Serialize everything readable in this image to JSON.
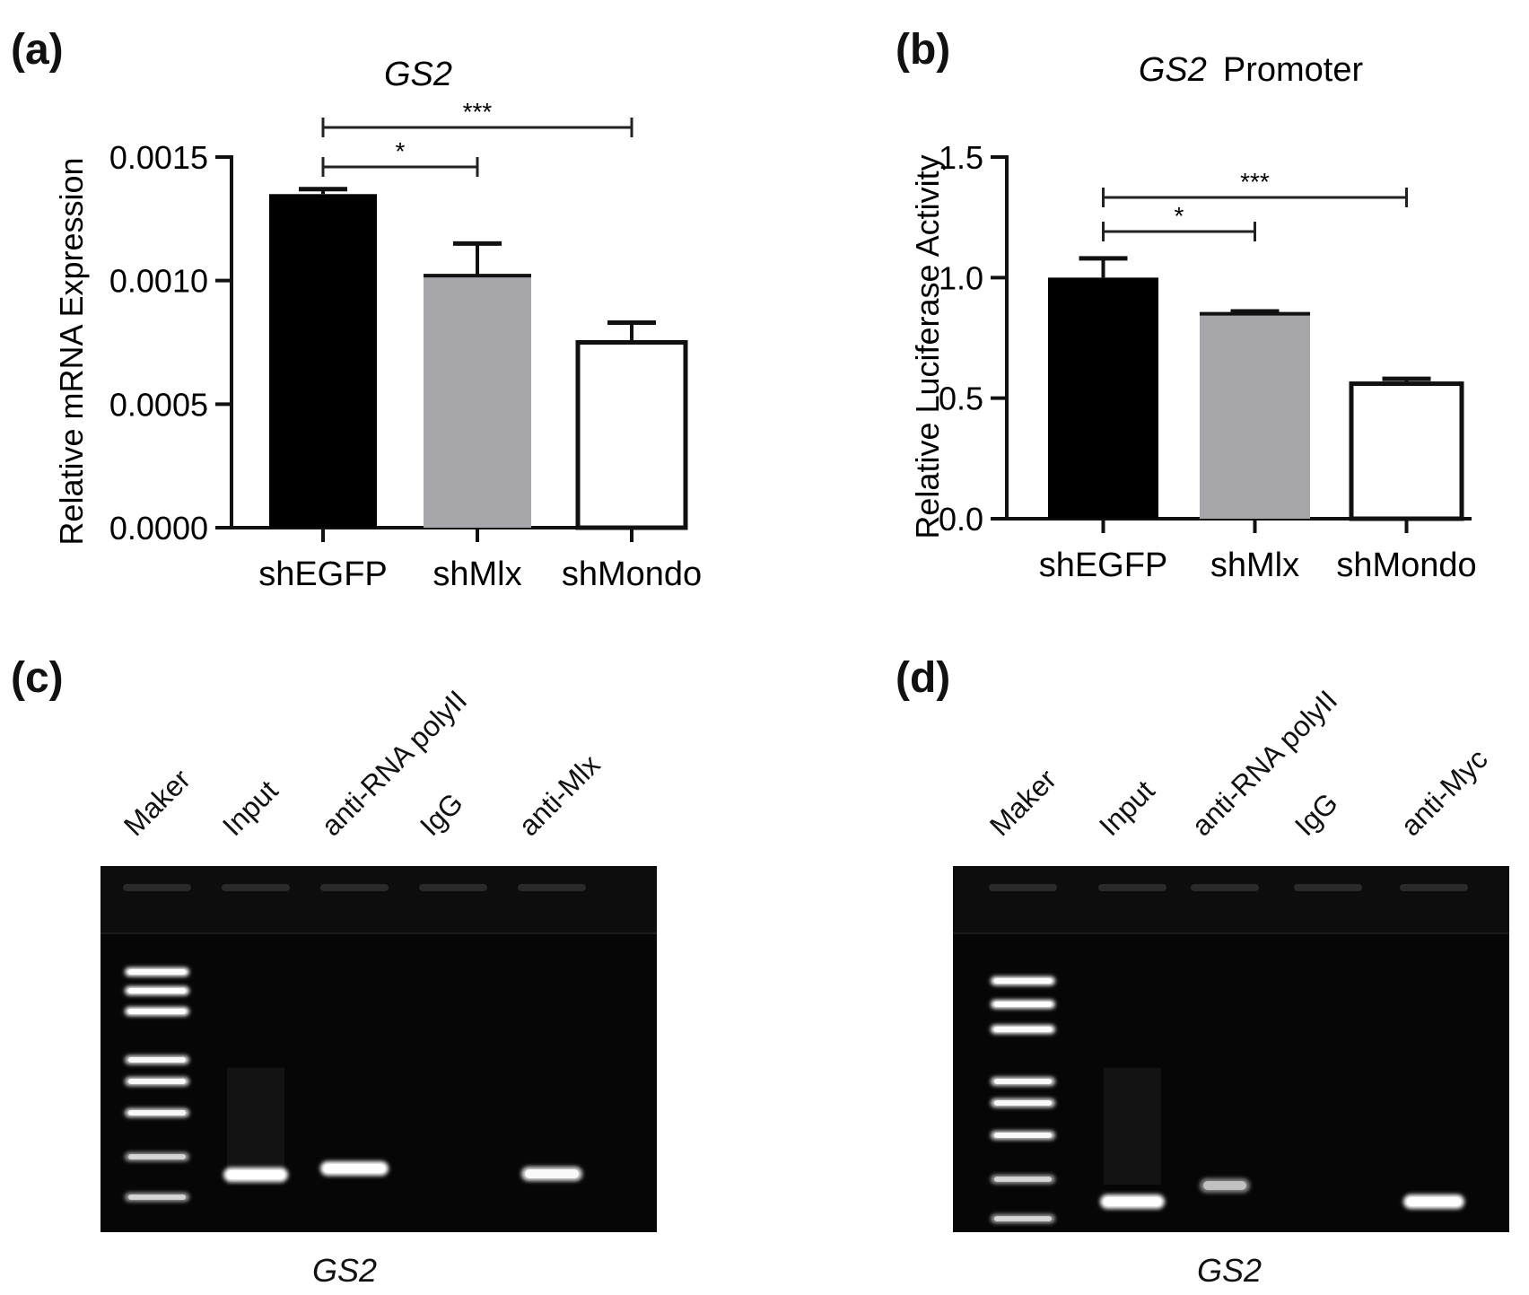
{
  "panels": {
    "a": {
      "label": "(a)"
    },
    "b": {
      "label": "(b)"
    },
    "c": {
      "label": "(c)"
    },
    "d": {
      "label": "(d)"
    }
  },
  "chart_data": [
    {
      "id": "a",
      "type": "bar",
      "title": "GS2",
      "title_style": "italic",
      "ylabel": "Relative mRNA Expression",
      "xlabel": "",
      "categories": [
        "shEGFP",
        "shMlx",
        "shMondo"
      ],
      "values": [
        0.00135,
        0.00102,
        0.00075
      ],
      "errors": [
        2e-05,
        0.00013,
        8e-05
      ],
      "fills": [
        "#000000",
        "#a7a7ab",
        "#ffffff"
      ],
      "ylim": [
        0,
        0.0015
      ],
      "yticks": [
        "0.0000",
        "0.0005",
        "0.0010",
        "0.0015"
      ],
      "grid": false,
      "significance": [
        {
          "from": 0,
          "to": 1,
          "label": "*"
        },
        {
          "from": 0,
          "to": 2,
          "label": "***"
        }
      ]
    },
    {
      "id": "b",
      "type": "bar",
      "title_parts": [
        "GS2",
        "Promoter"
      ],
      "ylabel": "Relative Luciferase Activity",
      "xlabel": "",
      "categories": [
        "shEGFP",
        "shMlx",
        "shMondo"
      ],
      "values": [
        1.0,
        0.85,
        0.56
      ],
      "errors": [
        0.08,
        0.01,
        0.02
      ],
      "fills": [
        "#000000",
        "#a7a7ab",
        "#ffffff"
      ],
      "ylim": [
        0,
        1.5
      ],
      "yticks": [
        "0.0",
        "0.5",
        "1.0",
        "1.5"
      ],
      "grid": false,
      "significance": [
        {
          "from": 0,
          "to": 1,
          "label": "*"
        },
        {
          "from": 0,
          "to": 2,
          "label": "***"
        }
      ]
    }
  ],
  "gels": [
    {
      "id": "c",
      "lanes": [
        "Maker",
        "Input",
        "anti-RNA polyII",
        "IgG",
        "anti-Mlx"
      ],
      "caption": "GS2"
    },
    {
      "id": "d",
      "lanes": [
        "Maker",
        "Input",
        "anti-RNA polyII",
        "IgG",
        "anti-Myc"
      ],
      "caption": "GS2"
    }
  ]
}
